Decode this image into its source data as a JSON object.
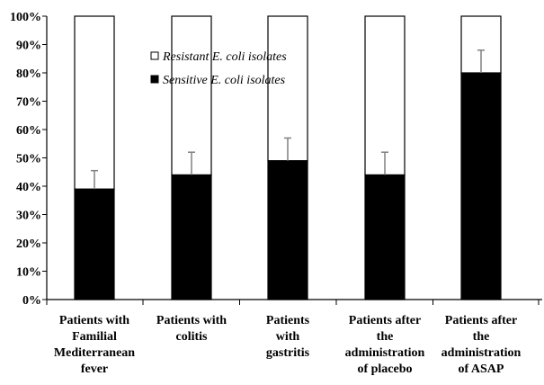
{
  "chart_data": {
    "type": "bar",
    "stacked": true,
    "categories": [
      [
        "Patients with",
        "Familial",
        "Mediterranean",
        "fever"
      ],
      [
        "Patients with",
        "colitis"
      ],
      [
        "Patients",
        "with",
        "gastritis"
      ],
      [
        "Patients after",
        "the",
        "administration",
        "of placebo"
      ],
      [
        "Patients after",
        "the",
        "administration",
        "of ASAP"
      ]
    ],
    "series": [
      {
        "name": "Sensitive E. coli isolates",
        "values": [
          39,
          44,
          49,
          44,
          80
        ],
        "color": "#000000"
      },
      {
        "name": "Resistant E. coli isolates",
        "values": [
          61,
          56,
          51,
          56,
          20
        ],
        "color": "#ffffff"
      }
    ],
    "error_bars_upper": [
      45.5,
      52,
      57,
      52,
      88
    ],
    "ylim": [
      0,
      100
    ],
    "yticks": [
      "0%",
      "10%",
      "20%",
      "30%",
      "40%",
      "50%",
      "60%",
      "70%",
      "80%",
      "90%",
      "100%"
    ],
    "legend": {
      "placement": "upper-center",
      "entries": [
        {
          "prefix": "",
          "emph": "Resistant E. coli",
          "suffix": " isolates",
          "color": "#ffffff"
        },
        {
          "prefix": "",
          "emph": "Sensitive E. coli",
          "suffix": " isolates",
          "color": "#000000"
        }
      ]
    },
    "grid": false
  }
}
